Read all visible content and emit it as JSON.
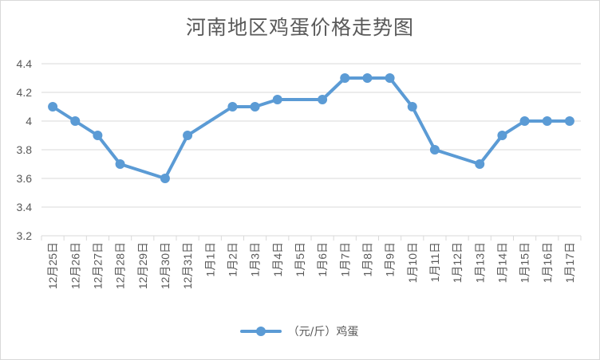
{
  "chart_data": {
    "type": "line",
    "title": "河南地区鸡蛋价格走势图",
    "categories": [
      "12月25日",
      "12月26日",
      "12月27日",
      "12月28日",
      "12月29日",
      "12月30日",
      "12月31日",
      "1月1日",
      "1月2日",
      "1月3日",
      "1月4日",
      "1月5日",
      "1月6日",
      "1月7日",
      "1月8日",
      "1月9日",
      "1月10日",
      "1月11日",
      "1月12日",
      "1月13日",
      "1月14日",
      "1月15日",
      "1月16日",
      "1月17日"
    ],
    "series": [
      {
        "name": "（元/斤）鸡蛋",
        "values": [
          4.1,
          4.0,
          3.9,
          3.7,
          null,
          3.6,
          3.9,
          null,
          4.1,
          4.1,
          4.15,
          null,
          4.15,
          4.3,
          4.3,
          4.3,
          4.1,
          3.8,
          null,
          3.7,
          3.9,
          4.0,
          4.0,
          4.0
        ]
      }
    ],
    "ylim": [
      3.2,
      4.4
    ],
    "yticks": [
      "3.2",
      "3.4",
      "3.6",
      "3.8",
      "4",
      "4.2",
      "4.4"
    ],
    "grid": true,
    "legend_position": "bottom",
    "colors": {
      "series": "#5b9bd5",
      "grid": "#d9d9d9",
      "text": "#595959"
    }
  }
}
